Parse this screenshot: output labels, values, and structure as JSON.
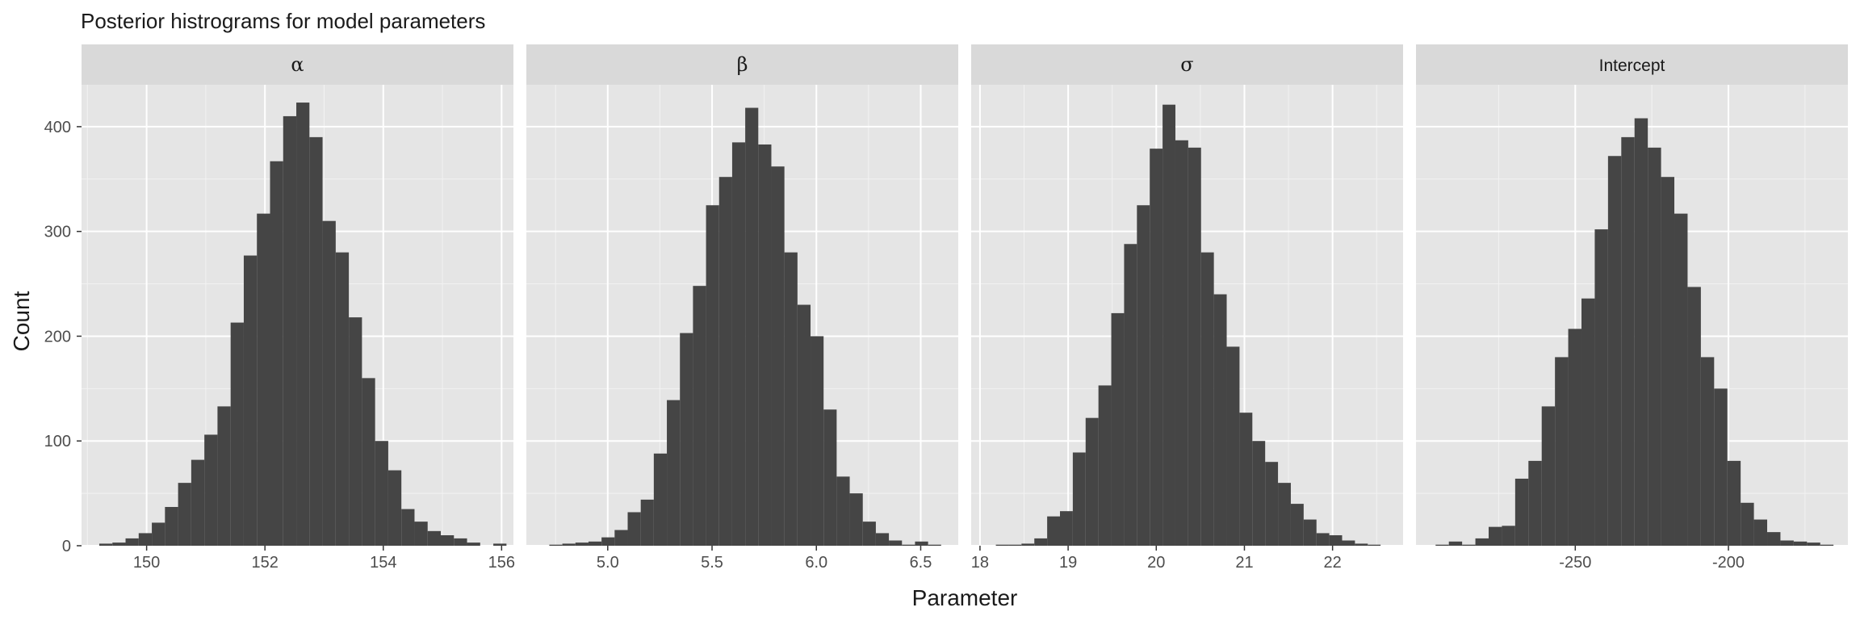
{
  "chart_data": {
    "type": "bar",
    "title": "Posterior histrograms for model parameters",
    "xlabel": "Parameter",
    "ylabel": "Count",
    "ylim": [
      0,
      440
    ],
    "yticks": [
      0,
      100,
      200,
      300,
      400
    ],
    "grid": true,
    "background": "#e5e5e5",
    "strip_fill": "#d9d9d9",
    "bar_color": "#454545",
    "panels": [
      {
        "label": "α",
        "xlim": [
          148.9,
          156.2
        ],
        "xticks": [
          150,
          152,
          154,
          156
        ],
        "xtick_labels": [
          "150",
          "152",
          "154",
          "156"
        ],
        "bin_start": 149.2,
        "bin_width": 0.222,
        "counts": [
          2,
          3,
          7,
          12,
          22,
          37,
          60,
          82,
          106,
          133,
          213,
          277,
          317,
          367,
          410,
          423,
          390,
          310,
          280,
          218,
          160,
          100,
          72,
          35,
          23,
          14,
          10,
          7,
          3,
          0,
          2
        ]
      },
      {
        "label": "β",
        "xlim": [
          4.61,
          6.68
        ],
        "xticks": [
          5.0,
          5.5,
          6.0,
          6.5
        ],
        "xtick_labels": [
          "5.0",
          "5.5",
          "6.0",
          "6.5"
        ],
        "bin_start": 4.72,
        "bin_width": 0.0626,
        "counts": [
          1,
          2,
          3,
          4,
          8,
          15,
          32,
          44,
          88,
          139,
          203,
          248,
          325,
          352,
          385,
          418,
          383,
          362,
          280,
          230,
          200,
          130,
          66,
          50,
          23,
          12,
          5,
          1,
          4,
          1
        ]
      },
      {
        "label": "σ",
        "xlim": [
          17.9,
          22.8
        ],
        "xticks": [
          18,
          19,
          20,
          21,
          22
        ],
        "xtick_labels": [
          "18",
          "19",
          "20",
          "21",
          "22"
        ],
        "bin_start": 18.18,
        "bin_width": 0.1455,
        "counts": [
          1,
          1,
          2,
          7,
          28,
          33,
          89,
          122,
          153,
          222,
          288,
          325,
          379,
          421,
          387,
          380,
          280,
          240,
          190,
          127,
          100,
          80,
          60,
          40,
          25,
          12,
          10,
          5,
          2,
          1
        ]
      },
      {
        "label": "Intercept",
        "xlim": [
          -302,
          -161
        ],
        "xticks": [
          -250,
          -200
        ],
        "xtick_labels": [
          "-250",
          "-200"
        ],
        "bin_start": -295.6,
        "bin_width": 4.33,
        "counts": [
          1,
          4,
          1,
          7,
          18,
          19,
          64,
          81,
          133,
          180,
          207,
          236,
          302,
          372,
          390,
          408,
          380,
          352,
          317,
          247,
          180,
          150,
          81,
          41,
          25,
          13,
          5,
          4,
          3,
          1
        ]
      }
    ]
  }
}
